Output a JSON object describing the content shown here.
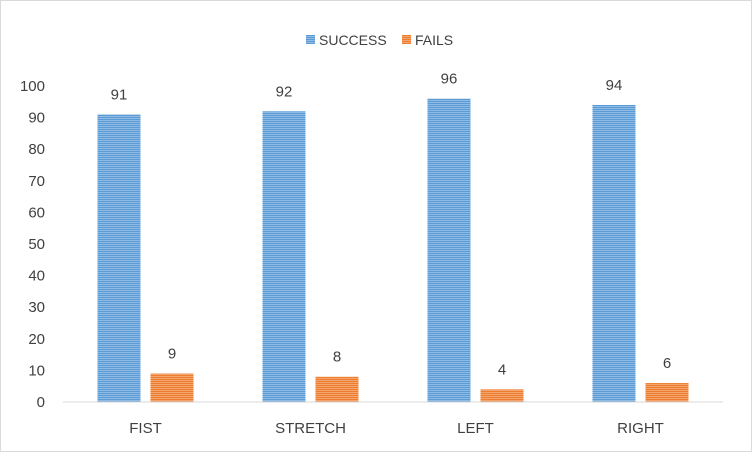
{
  "chart_data": {
    "type": "bar",
    "categories": [
      "FIST",
      "STRETCH",
      "LEFT",
      "RIGHT"
    ],
    "series": [
      {
        "name": "SUCCESS",
        "values": [
          91,
          92,
          96,
          94
        ],
        "color": "#5b9bd5"
      },
      {
        "name": "FAILS",
        "values": [
          9,
          8,
          4,
          6
        ],
        "color": "#ed7d31"
      }
    ],
    "title": "",
    "xlabel": "",
    "ylabel": "",
    "ylim": [
      0,
      100
    ],
    "yticks": [
      0,
      10,
      20,
      30,
      40,
      50,
      60,
      70,
      80,
      90,
      100
    ],
    "grid": false,
    "legend_position": "top-center",
    "data_labels": true
  }
}
